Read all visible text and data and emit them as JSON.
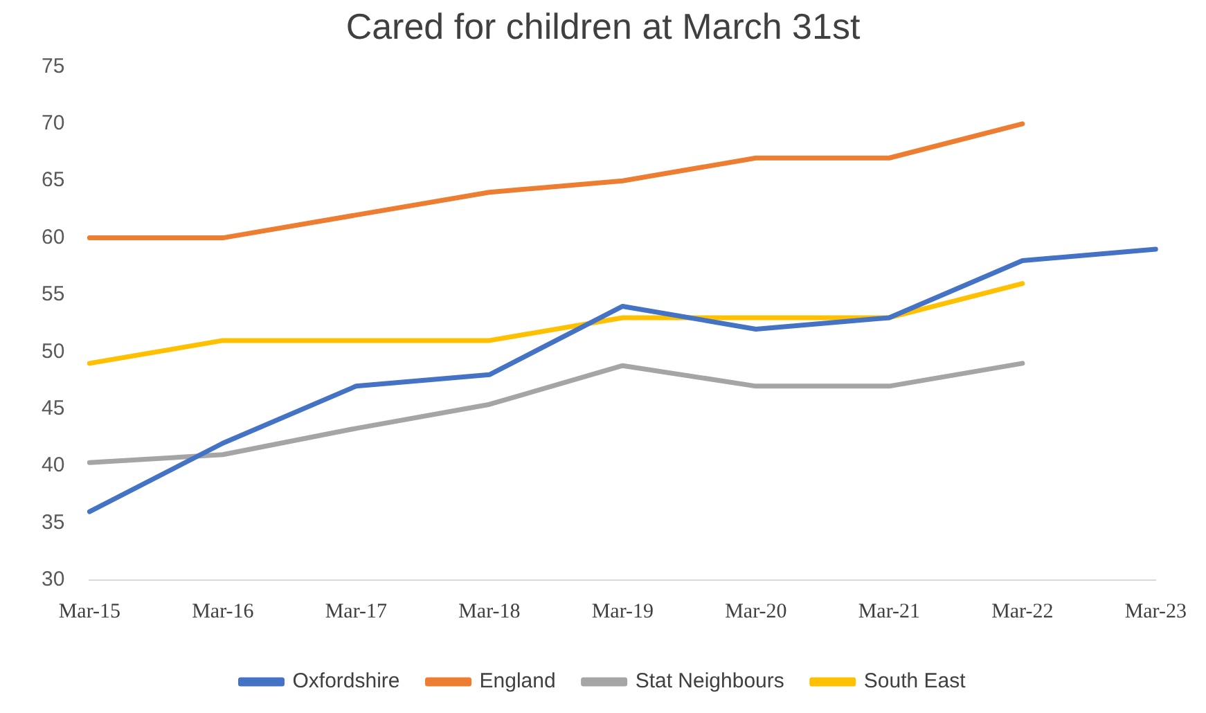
{
  "chart_data": {
    "type": "line",
    "title": "Cared for children at March 31st",
    "categories": [
      "Mar-15",
      "Mar-16",
      "Mar-17",
      "Mar-18",
      "Mar-19",
      "Mar-20",
      "Mar-21",
      "Mar-22",
      "Mar-23"
    ],
    "series": [
      {
        "name": "Oxfordshire",
        "color": "#4472c4",
        "values": [
          36,
          42,
          47,
          48,
          54,
          52,
          53,
          58,
          59
        ]
      },
      {
        "name": "England",
        "color": "#ed7d31",
        "values": [
          60,
          60,
          62,
          64,
          65,
          67,
          67,
          70,
          null
        ]
      },
      {
        "name": "Stat Neighbours",
        "color": "#a5a5a5",
        "values": [
          40.3,
          41,
          43.3,
          45.4,
          48.8,
          47,
          47,
          49,
          null
        ]
      },
      {
        "name": "South East",
        "color": "#ffc000",
        "values": [
          49,
          51,
          51,
          51,
          53,
          53,
          53,
          56,
          null
        ]
      }
    ],
    "ylim": [
      30,
      75
    ],
    "yticks": [
      30,
      35,
      40,
      45,
      50,
      55,
      60,
      65,
      70,
      75
    ],
    "grid": false,
    "legend": "bottom",
    "marker": "none",
    "line_style": "solid"
  }
}
